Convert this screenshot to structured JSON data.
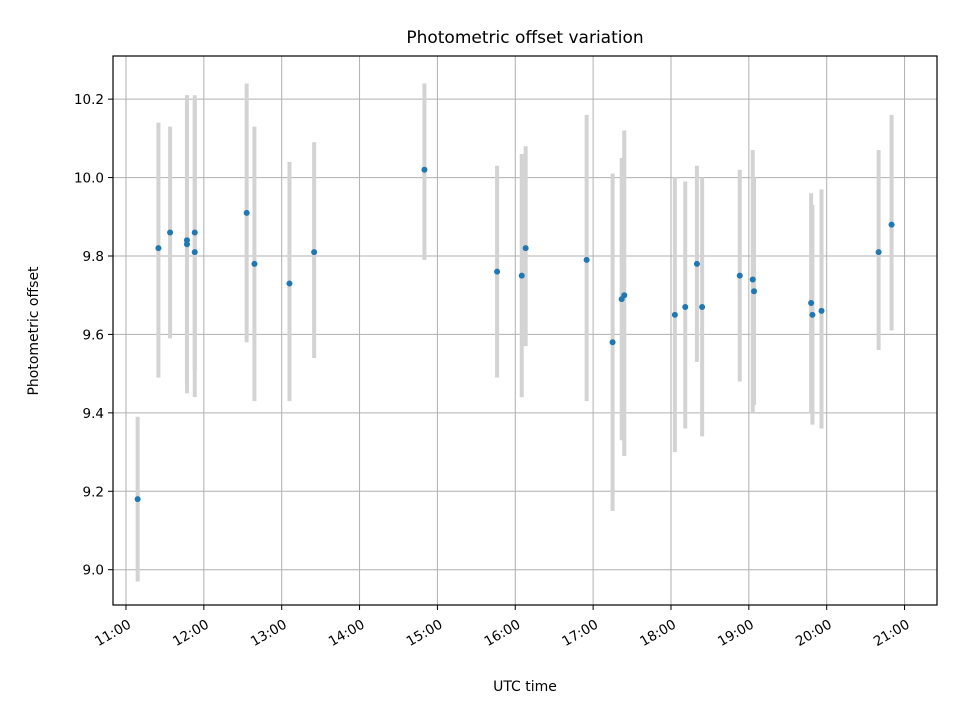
{
  "chart_data": {
    "type": "scatter",
    "title": "Photometric offset variation",
    "xlabel": "UTC time",
    "ylabel": "Photometric offset",
    "xlim": [
      "10:50",
      "21:25"
    ],
    "ylim": [
      8.91,
      10.31
    ],
    "xticks": [
      "11:00",
      "12:00",
      "13:00",
      "14:00",
      "15:00",
      "16:00",
      "17:00",
      "18:00",
      "19:00",
      "20:00",
      "21:00"
    ],
    "yticks": [
      "9.0",
      "9.2",
      "9.4",
      "9.6",
      "9.8",
      "10.0",
      "10.2"
    ],
    "grid": true,
    "point_color": "#1f77b4",
    "errorbar_color": "#d3d3d3",
    "series": [
      {
        "points": [
          {
            "time": "11:09",
            "y": 9.18,
            "lo": 8.97,
            "hi": 9.39
          },
          {
            "time": "11:25",
            "y": 9.82,
            "lo": 9.49,
            "hi": 10.14
          },
          {
            "time": "11:34",
            "y": 9.86,
            "lo": 9.59,
            "hi": 10.13
          },
          {
            "time": "11:47",
            "y": 9.84,
            "lo": 9.46,
            "hi": 10.21
          },
          {
            "time": "11:47",
            "y": 9.83,
            "lo": 9.45,
            "hi": 10.21
          },
          {
            "time": "11:53",
            "y": 9.81,
            "lo": 9.44,
            "hi": 10.21
          },
          {
            "time": "11:53",
            "y": 9.86,
            "lo": 9.51,
            "hi": 10.2
          },
          {
            "time": "12:33",
            "y": 9.91,
            "lo": 9.58,
            "hi": 10.24
          },
          {
            "time": "12:39",
            "y": 9.78,
            "lo": 9.43,
            "hi": 10.13
          },
          {
            "time": "13:06",
            "y": 9.73,
            "lo": 9.43,
            "hi": 10.04
          },
          {
            "time": "13:25",
            "y": 9.81,
            "lo": 9.54,
            "hi": 10.09
          },
          {
            "time": "14:50",
            "y": 10.02,
            "lo": 9.79,
            "hi": 10.24
          },
          {
            "time": "15:46",
            "y": 9.76,
            "lo": 9.49,
            "hi": 10.03
          },
          {
            "time": "16:05",
            "y": 9.75,
            "lo": 9.44,
            "hi": 10.06
          },
          {
            "time": "16:08",
            "y": 9.82,
            "lo": 9.57,
            "hi": 10.08
          },
          {
            "time": "16:55",
            "y": 9.79,
            "lo": 9.43,
            "hi": 10.16
          },
          {
            "time": "17:15",
            "y": 9.58,
            "lo": 9.15,
            "hi": 10.01
          },
          {
            "time": "17:22",
            "y": 9.69,
            "lo": 9.33,
            "hi": 10.05
          },
          {
            "time": "17:24",
            "y": 9.7,
            "lo": 9.29,
            "hi": 10.12
          },
          {
            "time": "18:03",
            "y": 9.65,
            "lo": 9.3,
            "hi": 10.0
          },
          {
            "time": "18:11",
            "y": 9.67,
            "lo": 9.36,
            "hi": 9.99
          },
          {
            "time": "18:20",
            "y": 9.78,
            "lo": 9.53,
            "hi": 10.03
          },
          {
            "time": "18:24",
            "y": 9.67,
            "lo": 9.34,
            "hi": 10.0
          },
          {
            "time": "18:53",
            "y": 9.75,
            "lo": 9.48,
            "hi": 10.02
          },
          {
            "time": "19:03",
            "y": 9.74,
            "lo": 9.4,
            "hi": 10.07
          },
          {
            "time": "19:04",
            "y": 9.71,
            "lo": 9.42,
            "hi": 10.0
          },
          {
            "time": "19:48",
            "y": 9.68,
            "lo": 9.4,
            "hi": 9.96
          },
          {
            "time": "19:49",
            "y": 9.65,
            "lo": 9.37,
            "hi": 9.93
          },
          {
            "time": "19:56",
            "y": 9.66,
            "lo": 9.36,
            "hi": 9.97
          },
          {
            "time": "20:40",
            "y": 9.81,
            "lo": 9.56,
            "hi": 10.07
          },
          {
            "time": "20:50",
            "y": 9.88,
            "lo": 9.61,
            "hi": 10.16
          }
        ]
      }
    ]
  }
}
